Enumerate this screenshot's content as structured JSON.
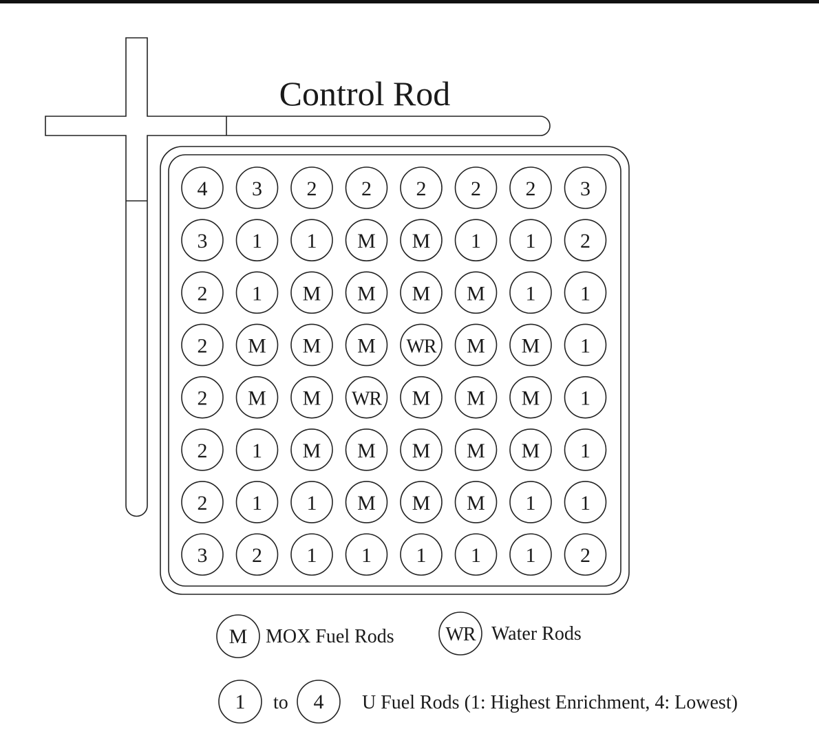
{
  "title": "Control Rod",
  "grid": [
    [
      "4",
      "3",
      "2",
      "2",
      "2",
      "2",
      "2",
      "3"
    ],
    [
      "3",
      "1",
      "1",
      "M",
      "M",
      "1",
      "1",
      "2"
    ],
    [
      "2",
      "1",
      "M",
      "M",
      "M",
      "M",
      "1",
      "1"
    ],
    [
      "2",
      "M",
      "M",
      "M",
      "WR",
      "M",
      "M",
      "1"
    ],
    [
      "2",
      "M",
      "M",
      "WR",
      "M",
      "M",
      "M",
      "1"
    ],
    [
      "2",
      "1",
      "M",
      "M",
      "M",
      "M",
      "M",
      "1"
    ],
    [
      "2",
      "1",
      "1",
      "M",
      "M",
      "M",
      "1",
      "1"
    ],
    [
      "3",
      "2",
      "1",
      "1",
      "1",
      "1",
      "1",
      "2"
    ]
  ],
  "legend": {
    "mox_symbol": "M",
    "mox_label": "MOX Fuel Rods",
    "water_symbol": "WR",
    "water_label": "Water Rods",
    "u_symbol_start": "1",
    "u_to": "to",
    "u_symbol_end": "4",
    "u_label": "U Fuel Rods (1: Highest Enrichment, 4: Lowest)"
  }
}
